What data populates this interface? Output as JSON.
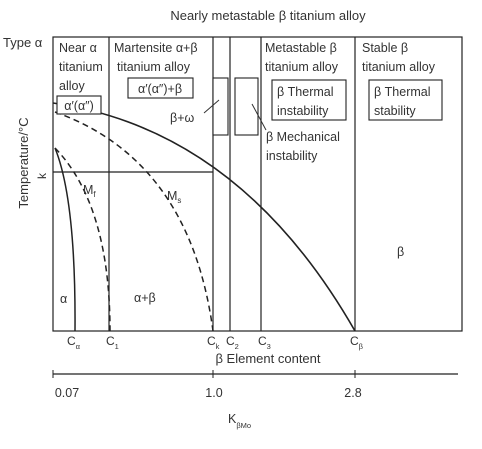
{
  "title": "Nearly metastable β titanium alloy",
  "type_label": "Type α",
  "y_axis_label": "Temperature/°C",
  "k_label": "k",
  "x_axis_label": "β Element content",
  "bottom_axis": {
    "label": "K",
    "label_sub": "βMo",
    "ticks": [
      "0.07",
      "1.0",
      "2.8"
    ]
  },
  "columns": {
    "near_alpha": [
      "Near α",
      "titanium",
      "alloy"
    ],
    "martensite": [
      "Martensite α+β",
      "titanium alloy"
    ],
    "metastable": [
      "Metastable β",
      "titanium alloy"
    ],
    "stable": [
      "Stable β",
      "titanium alloy"
    ]
  },
  "boxes": {
    "alpha_prime_small": "α′(α″)",
    "alpha_prime_beta": "α′(α″)+β",
    "thermal_instability": [
      "β Thermal",
      "instability"
    ],
    "thermal_stability": [
      "β Thermal",
      "stability"
    ]
  },
  "annotations": {
    "beta_omega": "β+ω",
    "mechanical_instability": [
      "β Mechanical",
      "instability"
    ]
  },
  "curves": {
    "mf": "M",
    "mf_sub": "f",
    "ms": "M",
    "ms_sub": "s"
  },
  "regions": {
    "alpha": "α",
    "alpha_beta": "α+β",
    "beta": "β"
  },
  "x_marks": [
    {
      "label": "C",
      "sub": "α"
    },
    {
      "label": "C",
      "sub": "1"
    },
    {
      "label": "C",
      "sub": "k"
    },
    {
      "label": "C",
      "sub": "2"
    },
    {
      "label": "C",
      "sub": "3"
    },
    {
      "label": "C",
      "sub": "β"
    }
  ]
}
